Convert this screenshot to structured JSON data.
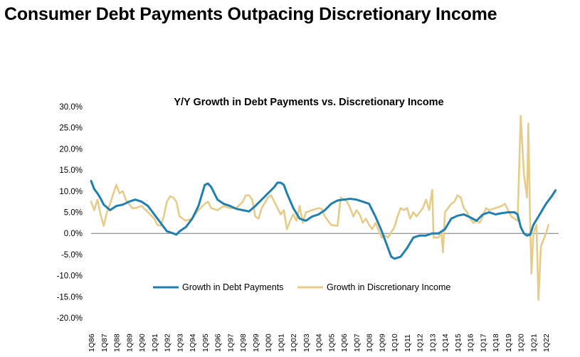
{
  "page": {
    "title": "Consumer Debt Payments Outpacing Discretionary Income"
  },
  "colors": {
    "debt": "#1f7fb0",
    "income": "#e6cc88",
    "zero_line": "#777777"
  },
  "chart_data": {
    "type": "line",
    "title": "Y/Y Growth in Debt Payments vs. Discretionary Income",
    "xlabel": "",
    "ylabel": "",
    "ylim": [
      -0.2,
      0.3
    ],
    "y_ticks": [
      0.3,
      0.25,
      0.2,
      0.15,
      0.1,
      0.05,
      0.0,
      -0.05,
      -0.1,
      -0.15,
      -0.2
    ],
    "y_tick_labels": [
      "30.0%",
      "25.0%",
      "20.0%",
      "15.0%",
      "10.0%",
      "5.0%",
      "0.0%",
      "-5.0%",
      "-10.0%",
      "-15.0%",
      "-20.0%"
    ],
    "x_tick_labels": [
      "1Q86",
      "1Q87",
      "1Q88",
      "1Q89",
      "1Q90",
      "1Q91",
      "1Q92",
      "1Q93",
      "1Q94",
      "1Q95",
      "1Q96",
      "1Q97",
      "1Q98",
      "1Q99",
      "1Q00",
      "1Q01",
      "1Q02",
      "1Q03",
      "1Q04",
      "1Q05",
      "1Q06",
      "1Q07",
      "1Q08",
      "1Q09",
      "1Q10",
      "1Q11",
      "1Q12",
      "1Q13",
      "1Q14",
      "1Q15",
      "1Q16",
      "1Q17",
      "1Q18",
      "1Q19",
      "1Q20",
      "1Q21",
      "1Q22"
    ],
    "x_range": [
      "1Q86",
      "4Q22"
    ],
    "legend_placement": "bottom-center",
    "series": [
      {
        "name": "Growth in Debt Payments",
        "color": "#1f7fb0",
        "points": [
          [
            1986.0,
            0.124
          ],
          [
            1986.25,
            0.105
          ],
          [
            1986.5,
            0.095
          ],
          [
            1986.75,
            0.083
          ],
          [
            1987.0,
            0.068
          ],
          [
            1987.5,
            0.055
          ],
          [
            1988.0,
            0.065
          ],
          [
            1988.5,
            0.068
          ],
          [
            1989.0,
            0.075
          ],
          [
            1989.5,
            0.08
          ],
          [
            1990.0,
            0.075
          ],
          [
            1990.5,
            0.065
          ],
          [
            1991.0,
            0.045
          ],
          [
            1991.5,
            0.025
          ],
          [
            1992.0,
            0.005
          ],
          [
            1992.5,
            0.0
          ],
          [
            1992.75,
            -0.003
          ],
          [
            1993.0,
            0.005
          ],
          [
            1993.5,
            0.015
          ],
          [
            1994.0,
            0.035
          ],
          [
            1994.5,
            0.065
          ],
          [
            1995.0,
            0.115
          ],
          [
            1995.25,
            0.118
          ],
          [
            1995.5,
            0.11
          ],
          [
            1996.0,
            0.08
          ],
          [
            1996.5,
            0.07
          ],
          [
            1997.0,
            0.065
          ],
          [
            1997.5,
            0.058
          ],
          [
            1998.0,
            0.055
          ],
          [
            1998.5,
            0.052
          ],
          [
            1999.0,
            0.065
          ],
          [
            1999.5,
            0.08
          ],
          [
            2000.0,
            0.095
          ],
          [
            2000.5,
            0.11
          ],
          [
            2000.75,
            0.12
          ],
          [
            2001.0,
            0.12
          ],
          [
            2001.25,
            0.115
          ],
          [
            2001.5,
            0.095
          ],
          [
            2002.0,
            0.06
          ],
          [
            2002.5,
            0.035
          ],
          [
            2003.0,
            0.03
          ],
          [
            2003.5,
            0.04
          ],
          [
            2004.0,
            0.045
          ],
          [
            2004.5,
            0.055
          ],
          [
            2005.0,
            0.07
          ],
          [
            2005.5,
            0.078
          ],
          [
            2006.0,
            0.08
          ],
          [
            2006.5,
            0.082
          ],
          [
            2007.0,
            0.08
          ],
          [
            2007.5,
            0.075
          ],
          [
            2008.0,
            0.07
          ],
          [
            2008.5,
            0.04
          ],
          [
            2009.0,
            0.005
          ],
          [
            2009.5,
            -0.035
          ],
          [
            2009.75,
            -0.055
          ],
          [
            2010.0,
            -0.06
          ],
          [
            2010.5,
            -0.055
          ],
          [
            2011.0,
            -0.035
          ],
          [
            2011.5,
            -0.01
          ],
          [
            2012.0,
            -0.005
          ],
          [
            2012.5,
            -0.005
          ],
          [
            2013.0,
            0.0
          ],
          [
            2013.5,
            0.0
          ],
          [
            2014.0,
            0.01
          ],
          [
            2014.5,
            0.035
          ],
          [
            2015.0,
            0.042
          ],
          [
            2015.5,
            0.045
          ],
          [
            2016.0,
            0.038
          ],
          [
            2016.5,
            0.03
          ],
          [
            2017.0,
            0.045
          ],
          [
            2017.5,
            0.05
          ],
          [
            2018.0,
            0.045
          ],
          [
            2018.5,
            0.048
          ],
          [
            2019.0,
            0.05
          ],
          [
            2019.5,
            0.05
          ],
          [
            2019.75,
            0.045
          ],
          [
            2020.0,
            0.015
          ],
          [
            2020.25,
            0.0
          ],
          [
            2020.5,
            -0.005
          ],
          [
            2020.75,
            -0.003
          ],
          [
            2021.0,
            0.02
          ],
          [
            2021.5,
            0.045
          ],
          [
            2022.0,
            0.07
          ],
          [
            2022.5,
            0.09
          ],
          [
            2022.75,
            0.102
          ]
        ]
      },
      {
        "name": "Growth in Discretionary Income",
        "color": "#e6cc88",
        "points": [
          [
            1986.0,
            0.075
          ],
          [
            1986.25,
            0.055
          ],
          [
            1986.5,
            0.08
          ],
          [
            1986.75,
            0.045
          ],
          [
            1987.0,
            0.018
          ],
          [
            1987.25,
            0.05
          ],
          [
            1987.5,
            0.07
          ],
          [
            1988.0,
            0.115
          ],
          [
            1988.25,
            0.095
          ],
          [
            1988.5,
            0.1
          ],
          [
            1988.75,
            0.08
          ],
          [
            1989.0,
            0.07
          ],
          [
            1989.25,
            0.06
          ],
          [
            1989.5,
            0.06
          ],
          [
            1990.0,
            0.065
          ],
          [
            1990.5,
            0.05
          ],
          [
            1991.0,
            0.035
          ],
          [
            1991.25,
            0.02
          ],
          [
            1991.5,
            0.018
          ],
          [
            1991.75,
            0.04
          ],
          [
            1992.0,
            0.075
          ],
          [
            1992.25,
            0.088
          ],
          [
            1992.5,
            0.085
          ],
          [
            1992.75,
            0.075
          ],
          [
            1993.0,
            0.04
          ],
          [
            1993.5,
            0.03
          ],
          [
            1994.0,
            0.035
          ],
          [
            1994.5,
            0.055
          ],
          [
            1995.0,
            0.07
          ],
          [
            1995.25,
            0.075
          ],
          [
            1995.5,
            0.06
          ],
          [
            1996.0,
            0.055
          ],
          [
            1996.5,
            0.065
          ],
          [
            1997.0,
            0.06
          ],
          [
            1997.5,
            0.06
          ],
          [
            1998.0,
            0.075
          ],
          [
            1998.25,
            0.09
          ],
          [
            1998.5,
            0.09
          ],
          [
            1998.75,
            0.08
          ],
          [
            1999.0,
            0.04
          ],
          [
            1999.25,
            0.035
          ],
          [
            1999.5,
            0.06
          ],
          [
            2000.0,
            0.085
          ],
          [
            2000.25,
            0.09
          ],
          [
            2000.5,
            0.075
          ],
          [
            2001.0,
            0.045
          ],
          [
            2001.25,
            0.055
          ],
          [
            2001.5,
            0.01
          ],
          [
            2001.75,
            0.03
          ],
          [
            2002.0,
            0.045
          ],
          [
            2002.25,
            0.03
          ],
          [
            2002.5,
            0.065
          ],
          [
            2002.75,
            0.025
          ],
          [
            2003.0,
            0.05
          ],
          [
            2003.5,
            0.055
          ],
          [
            2004.0,
            0.06
          ],
          [
            2004.25,
            0.058
          ],
          [
            2004.5,
            0.04
          ],
          [
            2004.75,
            0.03
          ],
          [
            2005.0,
            0.02
          ],
          [
            2005.5,
            0.018
          ],
          [
            2005.75,
            0.085
          ],
          [
            2006.0,
            0.08
          ],
          [
            2006.25,
            0.075
          ],
          [
            2006.5,
            0.06
          ],
          [
            2006.75,
            0.04
          ],
          [
            2007.0,
            0.055
          ],
          [
            2007.25,
            0.045
          ],
          [
            2007.5,
            0.025
          ],
          [
            2007.75,
            0.035
          ],
          [
            2008.0,
            0.02
          ],
          [
            2008.25,
            0.01
          ],
          [
            2008.5,
            0.025
          ],
          [
            2009.0,
            -0.01
          ],
          [
            2009.25,
            -0.005
          ],
          [
            2009.5,
            -0.01
          ],
          [
            2010.0,
            0.015
          ],
          [
            2010.25,
            0.04
          ],
          [
            2010.5,
            0.06
          ],
          [
            2010.75,
            0.055
          ],
          [
            2011.0,
            0.06
          ],
          [
            2011.25,
            0.035
          ],
          [
            2011.5,
            0.05
          ],
          [
            2011.75,
            0.04
          ],
          [
            2012.0,
            0.05
          ],
          [
            2012.25,
            0.06
          ],
          [
            2012.5,
            0.08
          ],
          [
            2012.75,
            0.055
          ],
          [
            2013.0,
            0.103
          ],
          [
            2013.1,
            -0.01
          ],
          [
            2013.5,
            -0.01
          ],
          [
            2013.7,
            0.005
          ],
          [
            2013.85,
            -0.045
          ],
          [
            2014.0,
            0.05
          ],
          [
            2014.25,
            0.06
          ],
          [
            2014.5,
            0.07
          ],
          [
            2014.75,
            0.075
          ],
          [
            2015.0,
            0.09
          ],
          [
            2015.25,
            0.085
          ],
          [
            2015.5,
            0.06
          ],
          [
            2015.75,
            0.05
          ],
          [
            2016.0,
            0.035
          ],
          [
            2016.25,
            0.025
          ],
          [
            2016.5,
            0.03
          ],
          [
            2016.75,
            0.025
          ],
          [
            2017.0,
            0.04
          ],
          [
            2017.25,
            0.06
          ],
          [
            2017.5,
            0.055
          ],
          [
            2018.0,
            0.06
          ],
          [
            2018.5,
            0.065
          ],
          [
            2018.75,
            0.07
          ],
          [
            2019.0,
            0.055
          ],
          [
            2019.25,
            0.04
          ],
          [
            2019.5,
            0.035
          ],
          [
            2019.75,
            0.03
          ],
          [
            2020.0,
            0.278
          ],
          [
            2020.25,
            0.14
          ],
          [
            2020.5,
            0.085
          ],
          [
            2020.6,
            0.26
          ],
          [
            2020.75,
            0.02
          ],
          [
            2020.85,
            -0.095
          ],
          [
            2021.0,
            0.0
          ],
          [
            2021.25,
            0.02
          ],
          [
            2021.4,
            -0.157
          ],
          [
            2021.6,
            -0.03
          ],
          [
            2022.0,
            0.0
          ],
          [
            2022.2,
            0.02
          ]
        ]
      }
    ]
  }
}
